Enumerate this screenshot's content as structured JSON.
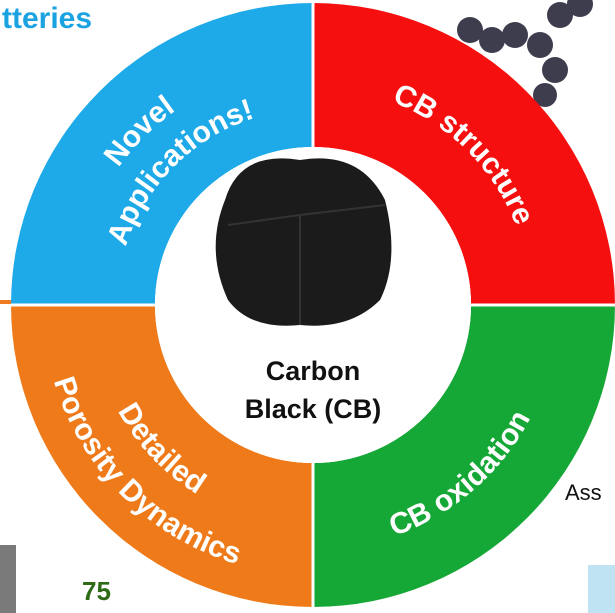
{
  "header_fragment": "tteries",
  "center": {
    "line1": "Carbon",
    "line2": "Black (CB)"
  },
  "segments": [
    {
      "lines": [
        "Novel",
        "Applications!"
      ]
    },
    {
      "lines": [
        "CB structure"
      ]
    },
    {
      "lines": [
        "CB oxidation"
      ]
    },
    {
      "lines": [
        "Detailed",
        "Porosity Dynamics"
      ]
    }
  ],
  "fragments": {
    "right": "Ass",
    "number": "75"
  }
}
